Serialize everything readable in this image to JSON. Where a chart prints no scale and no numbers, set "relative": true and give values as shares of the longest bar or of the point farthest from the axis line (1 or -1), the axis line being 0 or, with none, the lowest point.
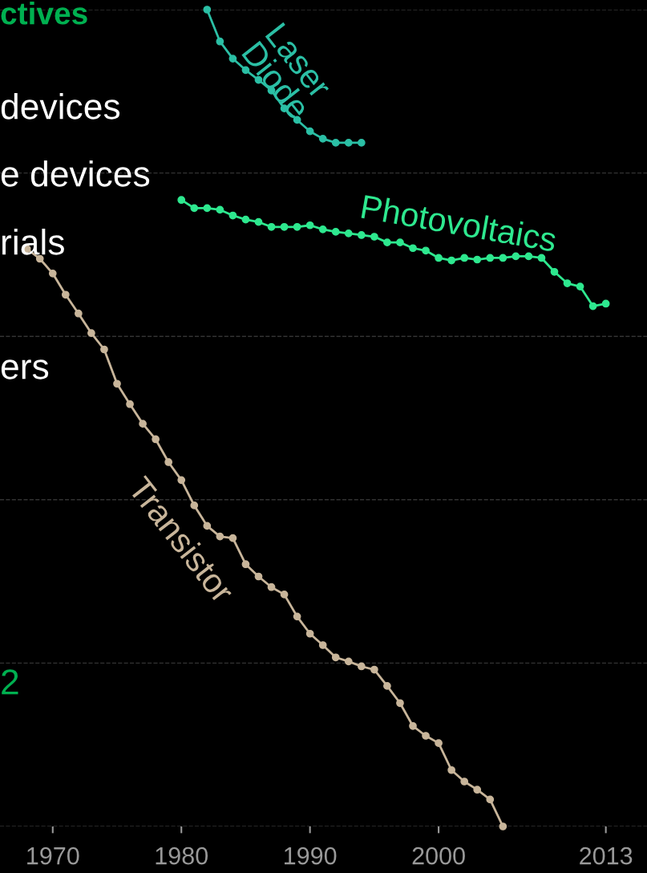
{
  "chart_data": {
    "type": "line",
    "relative": true,
    "marker": "circle",
    "line_style": "solid",
    "grid": "y",
    "legend": false,
    "xlim": [
      1965.9,
      2016.2
    ],
    "xticks": [
      1970,
      1980,
      1990,
      2000,
      2013
    ],
    "annotations": [
      "ctives",
      "devices",
      "e devices",
      "rials",
      "ers",
      "2"
    ],
    "series": [
      {
        "name": "Laser\nDiode",
        "color": "#2bbfa5",
        "x": [
          1982,
          1983,
          1984,
          1985,
          1986,
          1987,
          1988,
          1989,
          1990,
          1991,
          1992,
          1993,
          1994
        ],
        "values": [
          1.0,
          0.961,
          0.94,
          0.926,
          0.914,
          0.901,
          0.879,
          0.865,
          0.851,
          0.842,
          0.837,
          0.837,
          0.837
        ]
      },
      {
        "name": "Photovoltaics",
        "color": "#2ee88f",
        "x": [
          1980,
          1981,
          1982,
          1983,
          1984,
          1985,
          1986,
          1987,
          1988,
          1989,
          1990,
          1991,
          1992,
          1993,
          1994,
          1995,
          1996,
          1997,
          1998,
          1999,
          2000,
          2001,
          2002,
          2003,
          2004,
          2005,
          2006,
          2007,
          2008,
          2009,
          2010,
          2011,
          2012,
          2013
        ],
        "values": [
          0.767,
          0.757,
          0.757,
          0.755,
          0.748,
          0.743,
          0.74,
          0.734,
          0.734,
          0.734,
          0.736,
          0.731,
          0.728,
          0.726,
          0.724,
          0.722,
          0.715,
          0.715,
          0.708,
          0.705,
          0.696,
          0.693,
          0.696,
          0.694,
          0.696,
          0.696,
          0.698,
          0.698,
          0.696,
          0.679,
          0.665,
          0.661,
          0.637,
          0.64
        ]
      },
      {
        "name": "Transistor",
        "color": "#c8b59a",
        "x": [
          1968,
          1969,
          1970,
          1971,
          1972,
          1973,
          1974,
          1975,
          1976,
          1977,
          1978,
          1979,
          1980,
          1981,
          1982,
          1983,
          1984,
          1985,
          1986,
          1987,
          1988,
          1989,
          1990,
          1991,
          1992,
          1993,
          1994,
          1995,
          1996,
          1997,
          1998,
          1999,
          2000,
          2001,
          2002,
          2003,
          2004,
          2005
        ],
        "values": [
          0.707,
          0.695,
          0.677,
          0.651,
          0.628,
          0.604,
          0.584,
          0.542,
          0.517,
          0.493,
          0.474,
          0.446,
          0.424,
          0.393,
          0.368,
          0.355,
          0.353,
          0.321,
          0.306,
          0.293,
          0.284,
          0.257,
          0.236,
          0.222,
          0.207,
          0.202,
          0.196,
          0.192,
          0.172,
          0.151,
          0.123,
          0.111,
          0.102,
          0.069,
          0.055,
          0.045,
          0.033,
          0.0
        ]
      }
    ]
  }
}
